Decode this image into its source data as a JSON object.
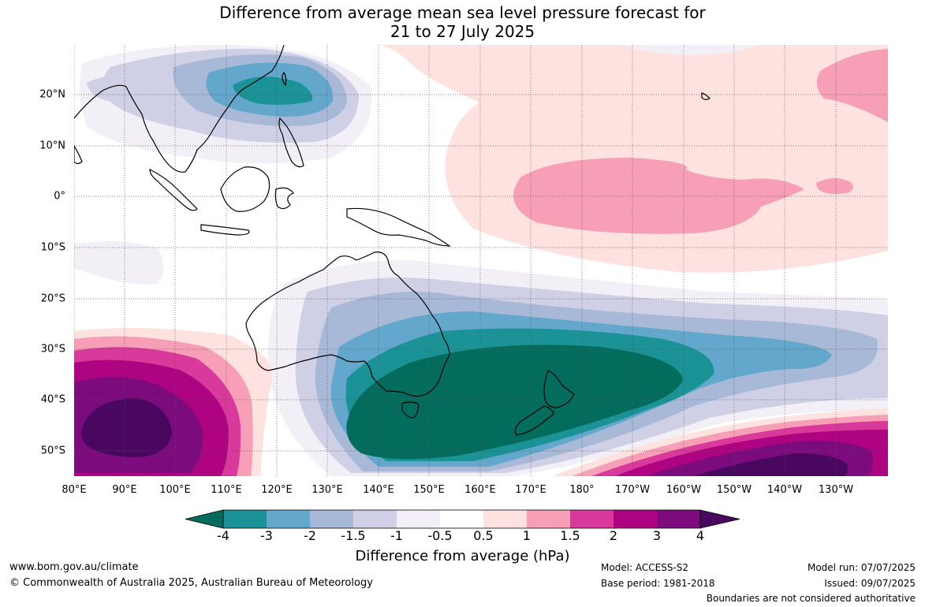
{
  "title_line1": "Difference from average mean sea level pressure forecast for",
  "title_line2": "21 to 27 July 2025",
  "lat_labels": [
    "20°N",
    "10°N",
    "0°",
    "10°S",
    "20°S",
    "30°S",
    "40°S",
    "50°S"
  ],
  "lon_labels": [
    "80°E",
    "90°E",
    "100°E",
    "110°E",
    "120°E",
    "130°E",
    "140°E",
    "150°E",
    "160°E",
    "170°E",
    "180°",
    "170°W",
    "160°W",
    "150°W",
    "140°W",
    "130°W"
  ],
  "colorbar": {
    "labels": [
      "-4",
      "-3",
      "-2",
      "-1.5",
      "-1",
      "-0.5",
      "0.5",
      "1",
      "1.5",
      "2",
      "3",
      "4"
    ],
    "colors": [
      "#046c5c",
      "#1a9296",
      "#63a8cc",
      "#a8b9d8",
      "#cfd0e6",
      "#f2eff7",
      "#ffffff",
      "#fde2df",
      "#f79fb7",
      "#d8399a",
      "#ae0481",
      "#7c0b7e"
    ],
    "low_color": "#046c5c",
    "high_color": "#4a0760",
    "title": "Difference from average (hPa)"
  },
  "footer": {
    "url": "www.bom.gov.au/climate",
    "copyright": "© Commonwealth of Australia 2025, Australian Bureau of Meteorology",
    "model": "Model: ACCESS-S2",
    "base_period": "Base period: 1981-2018",
    "model_run": "Model run: 07/07/2025",
    "issued": "Issued: 09/07/2025",
    "disclaimer": "Boundaries are not considered authoritative"
  }
}
